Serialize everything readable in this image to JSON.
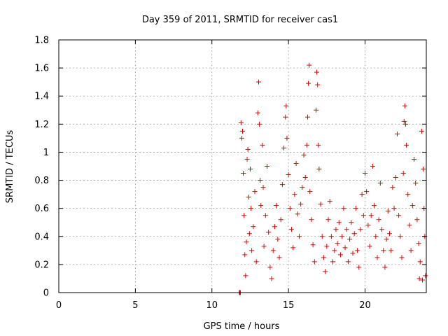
{
  "chart_data": {
    "type": "scatter",
    "title": "Day 359 of 2011, SRMTID for receiver cas1",
    "xlabel": "GPS time / hours",
    "ylabel": "SRMTID / TECUs",
    "xlim": [
      0,
      24
    ],
    "ylim": [
      0,
      1.8
    ],
    "xticks": [
      0,
      5,
      10,
      15,
      20
    ],
    "xtick_labels": [
      "0",
      "5",
      "10",
      "15",
      "20"
    ],
    "yticks": [
      0,
      0.2,
      0.4,
      0.6,
      0.8,
      1,
      1.2,
      1.4,
      1.6,
      1.8
    ],
    "ytick_labels": [
      "0",
      "0.2",
      "0.4",
      "0.6",
      "0.8",
      "1",
      "1.2",
      "1.4",
      "1.6",
      "1.8"
    ],
    "grid": true,
    "marker": "+",
    "color": "#e00000",
    "series": [
      {
        "name": "SRMTID",
        "points": [
          [
            11.78,
            0.0
          ],
          [
            11.82,
            0.0
          ],
          [
            11.86,
            0.0
          ],
          [
            11.9,
            1.21
          ],
          [
            11.95,
            1.1
          ],
          [
            12.0,
            1.15
          ],
          [
            12.05,
            0.85
          ],
          [
            12.1,
            0.55
          ],
          [
            12.15,
            0.27
          ],
          [
            12.2,
            0.12
          ],
          [
            12.25,
            0.36
          ],
          [
            12.3,
            0.95
          ],
          [
            12.35,
            1.02
          ],
          [
            12.4,
            0.68
          ],
          [
            12.45,
            0.42
          ],
          [
            12.5,
            0.88
          ],
          [
            12.55,
            0.6
          ],
          [
            12.6,
            0.3
          ],
          [
            12.7,
            0.47
          ],
          [
            12.8,
            0.72
          ],
          [
            12.9,
            0.22
          ],
          [
            13.0,
            1.28
          ],
          [
            13.05,
            1.5
          ],
          [
            13.1,
            1.2
          ],
          [
            13.15,
            0.8
          ],
          [
            13.2,
            0.62
          ],
          [
            13.3,
            1.05
          ],
          [
            13.35,
            0.75
          ],
          [
            13.4,
            0.33
          ],
          [
            13.5,
            0.55
          ],
          [
            13.6,
            0.9
          ],
          [
            13.7,
            0.43
          ],
          [
            13.8,
            0.18
          ],
          [
            13.9,
            0.1
          ],
          [
            14.0,
            0.3
          ],
          [
            14.1,
            0.47
          ],
          [
            14.2,
            0.62
          ],
          [
            14.3,
            0.38
          ],
          [
            14.4,
            0.25
          ],
          [
            14.5,
            0.52
          ],
          [
            14.6,
            0.77
          ],
          [
            14.7,
            1.03
          ],
          [
            14.8,
            1.25
          ],
          [
            14.85,
            1.33
          ],
          [
            14.9,
            1.1
          ],
          [
            15.0,
            0.84
          ],
          [
            15.1,
            0.6
          ],
          [
            15.2,
            0.45
          ],
          [
            15.3,
            0.32
          ],
          [
            15.4,
            0.7
          ],
          [
            15.5,
            0.92
          ],
          [
            15.6,
            0.56
          ],
          [
            15.7,
            0.4
          ],
          [
            15.8,
            0.63
          ],
          [
            15.9,
            0.75
          ],
          [
            16.0,
            0.98
          ],
          [
            16.1,
            0.82
          ],
          [
            16.2,
            1.05
          ],
          [
            16.25,
            1.25
          ],
          [
            16.3,
            1.49
          ],
          [
            16.35,
            1.62
          ],
          [
            16.4,
            0.72
          ],
          [
            16.5,
            0.52
          ],
          [
            16.6,
            0.34
          ],
          [
            16.7,
            0.22
          ],
          [
            16.8,
            1.3
          ],
          [
            16.85,
            1.57
          ],
          [
            16.9,
            1.48
          ],
          [
            16.95,
            1.05
          ],
          [
            17.0,
            0.88
          ],
          [
            17.1,
            0.63
          ],
          [
            17.2,
            0.4
          ],
          [
            17.3,
            0.25
          ],
          [
            17.4,
            0.15
          ],
          [
            17.5,
            0.33
          ],
          [
            17.6,
            0.52
          ],
          [
            17.7,
            0.65
          ],
          [
            17.8,
            0.4
          ],
          [
            17.9,
            0.22
          ],
          [
            18.0,
            0.3
          ],
          [
            18.1,
            0.45
          ],
          [
            18.2,
            0.35
          ],
          [
            18.3,
            0.5
          ],
          [
            18.4,
            0.27
          ],
          [
            18.5,
            0.4
          ],
          [
            18.6,
            0.6
          ],
          [
            18.7,
            0.32
          ],
          [
            18.8,
            0.45
          ],
          [
            18.9,
            0.22
          ],
          [
            19.0,
            0.38
          ],
          [
            19.1,
            0.5
          ],
          [
            19.2,
            0.28
          ],
          [
            19.3,
            0.42
          ],
          [
            19.4,
            0.6
          ],
          [
            19.5,
            0.3
          ],
          [
            19.6,
            0.18
          ],
          [
            19.7,
            0.45
          ],
          [
            19.8,
            0.7
          ],
          [
            19.9,
            0.55
          ],
          [
            20.0,
            0.85
          ],
          [
            20.1,
            0.72
          ],
          [
            20.2,
            0.48
          ],
          [
            20.3,
            0.33
          ],
          [
            20.4,
            0.55
          ],
          [
            20.5,
            0.9
          ],
          [
            20.6,
            0.62
          ],
          [
            20.7,
            0.4
          ],
          [
            20.8,
            0.25
          ],
          [
            20.9,
            0.52
          ],
          [
            21.0,
            0.78
          ],
          [
            21.1,
            0.45
          ],
          [
            21.2,
            0.3
          ],
          [
            21.3,
            0.18
          ],
          [
            21.4,
            0.38
          ],
          [
            21.5,
            0.58
          ],
          [
            21.6,
            0.42
          ],
          [
            21.7,
            0.3
          ],
          [
            21.8,
            0.75
          ],
          [
            21.9,
            0.6
          ],
          [
            22.0,
            0.82
          ],
          [
            22.1,
            1.13
          ],
          [
            22.2,
            0.55
          ],
          [
            22.3,
            0.4
          ],
          [
            22.4,
            0.25
          ],
          [
            22.5,
            0.85
          ],
          [
            22.55,
            1.22
          ],
          [
            22.6,
            1.33
          ],
          [
            22.65,
            1.2
          ],
          [
            22.7,
            1.05
          ],
          [
            22.8,
            0.7
          ],
          [
            22.9,
            0.48
          ],
          [
            23.0,
            0.3
          ],
          [
            23.1,
            0.62
          ],
          [
            23.2,
            0.95
          ],
          [
            23.3,
            0.78
          ],
          [
            23.4,
            0.52
          ],
          [
            23.5,
            0.35
          ],
          [
            23.6,
            0.22
          ],
          [
            23.7,
            1.15
          ],
          [
            23.8,
            0.88
          ],
          [
            23.85,
            0.6
          ],
          [
            23.9,
            0.4
          ],
          [
            23.95,
            0.12
          ],
          [
            23.75,
            0.09
          ],
          [
            23.55,
            0.1
          ]
        ]
      }
    ]
  }
}
